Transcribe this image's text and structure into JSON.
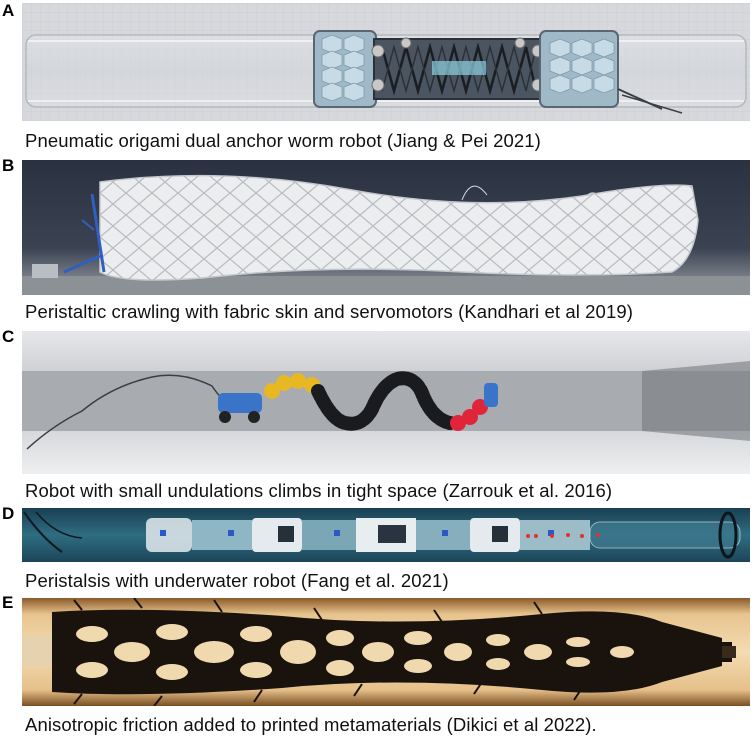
{
  "panels": [
    {
      "letter": "A",
      "caption": "Pneumatic origami dual anchor worm robot (Jiang & Pei 2021)"
    },
    {
      "letter": "B",
      "caption": "Peristaltic crawling with fabric skin and servomotors (Kandhari et al 2019)"
    },
    {
      "letter": "C",
      "caption": "Robot with small undulations climbs in tight space (Zarrouk et al. 2016)"
    },
    {
      "letter": "D",
      "caption": "Peristalsis with underwater robot (Fang et al. 2021)"
    },
    {
      "letter": "E",
      "caption": "Anisotropic friction added to printed metamaterials (Dikici et al 2022)."
    }
  ]
}
